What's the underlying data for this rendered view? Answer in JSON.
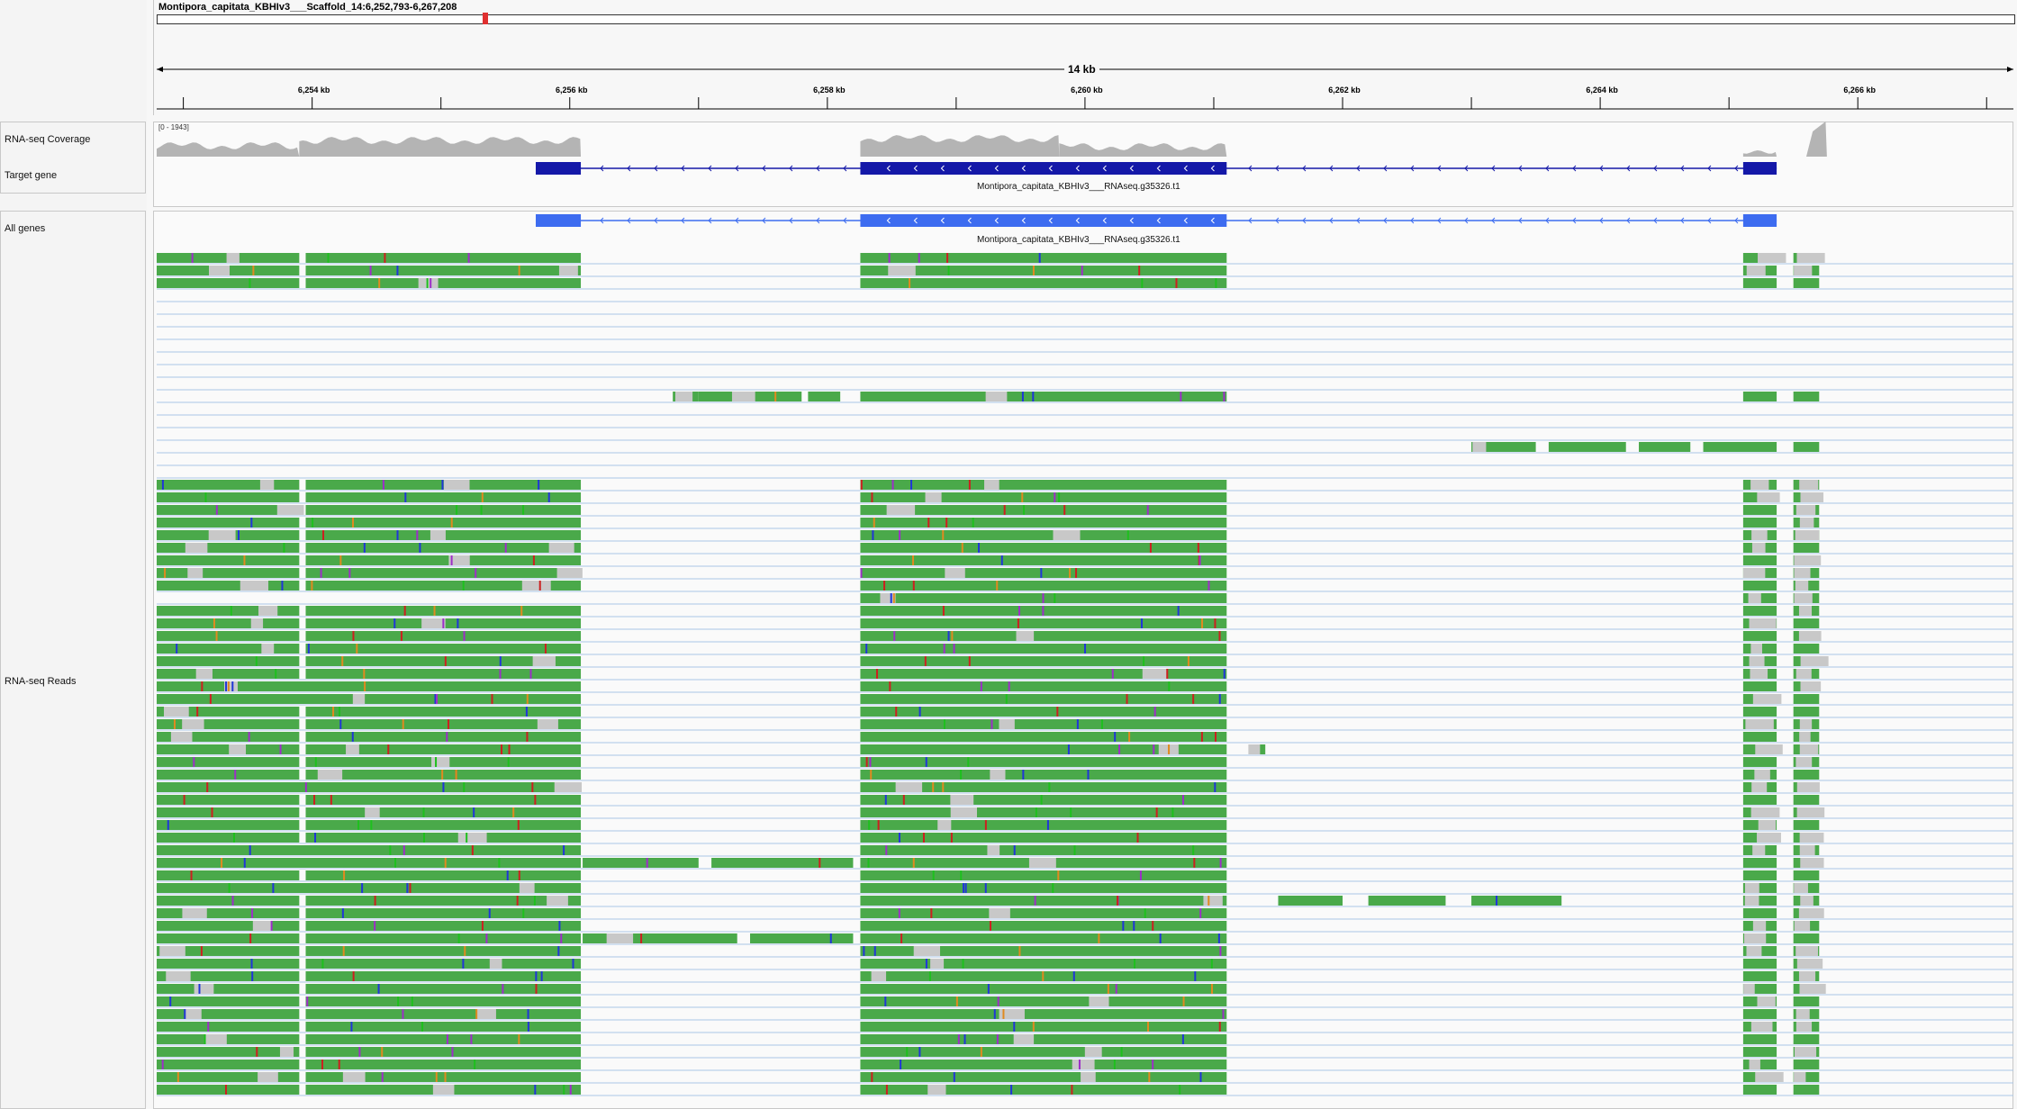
{
  "locus": {
    "text": "Montipora_capitata_KBHIv3___Scaffold_14:6,252,793-6,267,208",
    "start": 6252793,
    "end": 6267208
  },
  "ruler": {
    "span_label": "14 kb",
    "ticks": [
      {
        "label": "6,254 kb",
        "pos": 6254000
      },
      {
        "label": "6,256 kb",
        "pos": 6256000
      },
      {
        "label": "6,258 kb",
        "pos": 6258000
      },
      {
        "label": "6,260 kb",
        "pos": 6260000
      },
      {
        "label": "6,262 kb",
        "pos": 6262000
      },
      {
        "label": "6,264 kb",
        "pos": 6264000
      },
      {
        "label": "6,266 kb",
        "pos": 6266000
      }
    ]
  },
  "tracks": {
    "coverage": {
      "label": "RNA-seq Coverage",
      "range": "[0 - 1943]"
    },
    "target_gene": {
      "label": "Target gene",
      "feature": "Montipora_capitata_KBHIv3___RNAseq.g35326.t1"
    },
    "all_genes": {
      "label": "All genes",
      "feature": "Montipora_capitata_KBHIv3___RNAseq.g35326.t1"
    },
    "reads": {
      "label": "RNA-seq Reads"
    }
  },
  "colors": {
    "read": "#4aa94a",
    "target_exon": "#1418a8",
    "allgenes_exon": "#3d6cf0",
    "coverage": "#b4b4b4",
    "row_line": "#a9c6e6",
    "locator": "#e03030"
  },
  "gene_model": {
    "exons": [
      [
        6255736,
        6256086
      ],
      [
        6258256,
        6261100
      ],
      [
        6265110,
        6265370
      ]
    ]
  }
}
